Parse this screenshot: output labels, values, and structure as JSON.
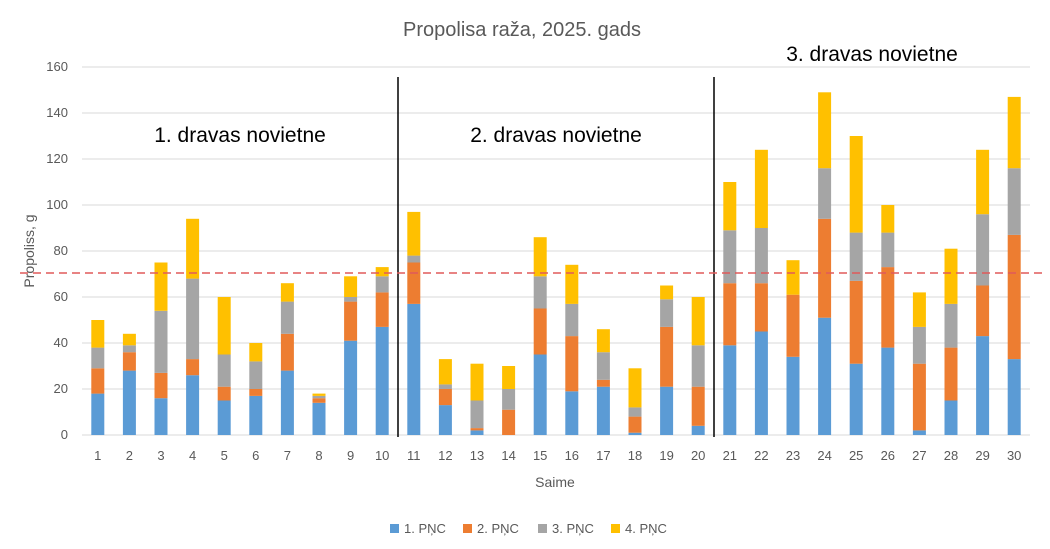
{
  "chart_data": {
    "type": "bar",
    "stacked": true,
    "title": "Propolisa raža, 2025. gads",
    "xlabel": "Saime",
    "ylabel": "Propoliss, g",
    "ylim": [
      0,
      160
    ],
    "yticks": [
      0,
      20,
      40,
      60,
      80,
      100,
      120,
      140,
      160
    ],
    "grid": true,
    "legend_position": "bottom",
    "categories": [
      "1",
      "2",
      "3",
      "4",
      "5",
      "6",
      "7",
      "8",
      "9",
      "10",
      "11",
      "12",
      "13",
      "14",
      "15",
      "16",
      "17",
      "18",
      "19",
      "20",
      "21",
      "22",
      "23",
      "24",
      "25",
      "26",
      "27",
      "28",
      "29",
      "30"
    ],
    "series": [
      {
        "name": "1. PŅC",
        "color": "#5b9bd5",
        "values": [
          18,
          28,
          16,
          26,
          15,
          17,
          28,
          14,
          41,
          47,
          57,
          13,
          2,
          0,
          35,
          19,
          21,
          1,
          21,
          4,
          39,
          45,
          34,
          51,
          31,
          38,
          2,
          15,
          43,
          33
        ]
      },
      {
        "name": "2. PŅC",
        "color": "#ed7d31",
        "values": [
          11,
          8,
          11,
          7,
          6,
          3,
          16,
          2,
          17,
          15,
          18,
          7,
          1,
          11,
          20,
          24,
          3,
          7,
          26,
          17,
          27,
          21,
          27,
          43,
          36,
          35,
          29,
          23,
          22,
          54
        ]
      },
      {
        "name": "3. PŅC",
        "color": "#a5a5a5",
        "values": [
          9,
          3,
          27,
          35,
          14,
          12,
          14,
          1,
          2,
          7,
          3,
          2,
          12,
          9,
          14,
          14,
          12,
          4,
          12,
          18,
          23,
          24,
          0,
          22,
          21,
          15,
          16,
          19,
          31,
          29
        ]
      },
      {
        "name": "4. PŅC",
        "color": "#ffc000",
        "values": [
          12,
          5,
          21,
          26,
          25,
          8,
          8,
          1,
          9,
          4,
          19,
          11,
          16,
          10,
          17,
          17,
          10,
          17,
          6,
          21,
          21,
          34,
          15,
          33,
          42,
          12,
          15,
          24,
          28,
          31
        ]
      }
    ],
    "reference_line": {
      "value": 70,
      "color": "#e05a5a",
      "style": "dashed"
    },
    "annotations": [
      {
        "text": "1. dravas novietne",
        "range": [
          1,
          10
        ]
      },
      {
        "text": "2. dravas novietne",
        "range": [
          11,
          20
        ]
      },
      {
        "text": "3. dravas novietne",
        "range": [
          21,
          30
        ]
      }
    ],
    "separators_after": [
      "10",
      "20"
    ]
  }
}
